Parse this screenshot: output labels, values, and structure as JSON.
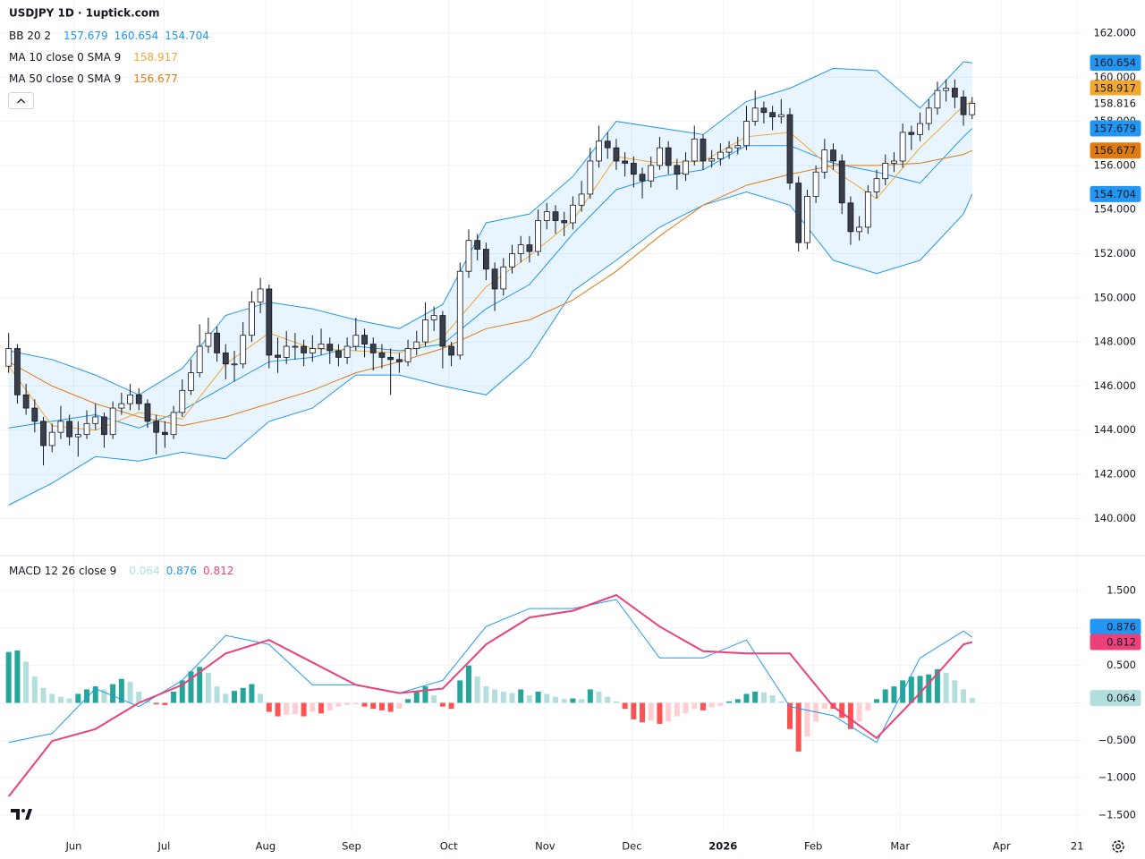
{
  "chart_data": [
    {
      "type": "candlestick",
      "title": "USDJPY 1D · 1uptick.com",
      "xlim": [
        -1,
        123.7
      ],
      "xticks": [
        {
          "value": 7.5,
          "label": "Jun"
        },
        {
          "value": 17.9,
          "label": "Jul"
        },
        {
          "value": 29.6,
          "label": "Aug"
        },
        {
          "value": 39.5,
          "label": "Sep"
        },
        {
          "value": 50.7,
          "label": "Oct"
        },
        {
          "value": 61.8,
          "label": "Nov"
        },
        {
          "value": 71.8,
          "label": "Dec"
        },
        {
          "value": 82.3,
          "label": "2026"
        },
        {
          "value": 92.7,
          "label": "Feb"
        },
        {
          "value": 102.7,
          "label": "Mar"
        },
        {
          "value": 114.4,
          "label": "Apr"
        },
        {
          "value": 123.1,
          "label": "21"
        }
      ],
      "ylim": [
        138.35,
        163.5
      ],
      "yticks": [
        {
          "value": 140,
          "label": "140.000"
        },
        {
          "value": 142,
          "label": "142.000"
        },
        {
          "value": 144,
          "label": "144.000"
        },
        {
          "value": 146,
          "label": "146.000"
        },
        {
          "value": 148,
          "label": "148.000"
        },
        {
          "value": 150,
          "label": "150.000"
        },
        {
          "value": 152,
          "label": "152.000"
        },
        {
          "value": 154,
          "label": "154.000"
        },
        {
          "value": 156,
          "label": "156.000"
        },
        {
          "value": 158,
          "label": "158.000"
        },
        {
          "value": 160,
          "label": "160.000"
        },
        {
          "value": 162,
          "label": "162.000"
        }
      ],
      "grid": true,
      "candle_colors": {
        "up": "#ffffff",
        "down": "#3a3e48",
        "border": "#131722"
      },
      "last_price_color": "#ffffff",
      "ohlc": [
        [
          146.9,
          148.4,
          146.6,
          147.7
        ],
        [
          147.7,
          147.9,
          145.2,
          145.6
        ],
        [
          145.6,
          146.1,
          144.7,
          145.0
        ],
        [
          145.0,
          145.4,
          143.9,
          144.4
        ],
        [
          144.4,
          144.6,
          142.4,
          143.3
        ],
        [
          143.3,
          144.3,
          143.0,
          143.9
        ],
        [
          143.9,
          145.1,
          143.6,
          144.4
        ],
        [
          144.4,
          144.7,
          143.3,
          143.7
        ],
        [
          143.7,
          144.4,
          142.8,
          143.8
        ],
        [
          143.8,
          144.9,
          143.6,
          144.3
        ],
        [
          144.3,
          145.2,
          144.0,
          144.6
        ],
        [
          144.6,
          144.8,
          143.2,
          143.8
        ],
        [
          143.8,
          145.3,
          143.6,
          145.0
        ],
        [
          145.0,
          145.7,
          144.7,
          145.2
        ],
        [
          145.2,
          146.1,
          144.9,
          145.6
        ],
        [
          145.6,
          145.9,
          144.9,
          145.2
        ],
        [
          145.2,
          145.4,
          144.1,
          144.4
        ],
        [
          144.4,
          144.7,
          142.9,
          143.9
        ],
        [
          143.9,
          144.4,
          143.2,
          143.8
        ],
        [
          143.8,
          145.1,
          143.6,
          144.8
        ],
        [
          144.8,
          146.3,
          144.6,
          145.8
        ],
        [
          145.8,
          147.2,
          145.6,
          146.6
        ],
        [
          146.6,
          148.8,
          146.4,
          147.8
        ],
        [
          147.8,
          149.1,
          147.5,
          148.4
        ],
        [
          148.4,
          148.7,
          147.1,
          147.5
        ],
        [
          147.5,
          147.9,
          146.3,
          147.0
        ],
        [
          147.0,
          147.6,
          146.2,
          147.0
        ],
        [
          147.0,
          148.9,
          146.8,
          148.3
        ],
        [
          148.3,
          150.3,
          148.0,
          149.8
        ],
        [
          149.8,
          150.9,
          149.3,
          150.4
        ],
        [
          150.4,
          150.6,
          146.8,
          147.4
        ],
        [
          147.4,
          148.2,
          146.6,
          147.3
        ],
        [
          147.3,
          148.5,
          147.0,
          147.8
        ],
        [
          147.8,
          148.4,
          147.2,
          147.8
        ],
        [
          147.8,
          148.1,
          146.9,
          147.5
        ],
        [
          147.5,
          148.3,
          147.1,
          147.7
        ],
        [
          147.7,
          148.6,
          147.4,
          147.9
        ],
        [
          147.9,
          148.2,
          147.0,
          147.6
        ],
        [
          147.6,
          147.9,
          146.9,
          147.3
        ],
        [
          147.3,
          148.2,
          147.0,
          147.8
        ],
        [
          147.8,
          149.1,
          147.6,
          148.3
        ],
        [
          148.3,
          148.6,
          147.3,
          147.9
        ],
        [
          147.9,
          148.2,
          146.7,
          147.5
        ],
        [
          147.5,
          147.9,
          146.8,
          147.3
        ],
        [
          147.3,
          147.7,
          145.6,
          147.2
        ],
        [
          147.2,
          147.5,
          146.6,
          147.1
        ],
        [
          147.1,
          148.1,
          146.9,
          147.7
        ],
        [
          147.7,
          148.5,
          147.4,
          148.0
        ],
        [
          148.0,
          149.8,
          147.8,
          149.0
        ],
        [
          149.0,
          149.6,
          148.5,
          149.2
        ],
        [
          149.2,
          149.4,
          146.8,
          147.8
        ],
        [
          147.8,
          148.0,
          146.9,
          147.4
        ],
        [
          147.4,
          151.6,
          147.2,
          151.2
        ],
        [
          151.2,
          153.1,
          150.9,
          152.6
        ],
        [
          152.6,
          152.9,
          151.7,
          152.2
        ],
        [
          152.2,
          152.5,
          150.8,
          151.3
        ],
        [
          151.3,
          151.6,
          149.4,
          150.4
        ],
        [
          150.4,
          151.8,
          150.1,
          151.4
        ],
        [
          151.4,
          152.4,
          151.1,
          152.0
        ],
        [
          152.0,
          152.8,
          151.6,
          152.4
        ],
        [
          152.4,
          152.8,
          151.6,
          152.1
        ],
        [
          152.1,
          154.0,
          151.9,
          153.5
        ],
        [
          153.5,
          154.3,
          153.1,
          153.9
        ],
        [
          153.9,
          154.2,
          152.9,
          153.5
        ],
        [
          153.5,
          153.9,
          152.8,
          153.4
        ],
        [
          153.4,
          154.6,
          153.1,
          154.2
        ],
        [
          154.2,
          155.3,
          153.9,
          154.7
        ],
        [
          154.7,
          156.8,
          154.5,
          156.2
        ],
        [
          156.2,
          157.8,
          155.9,
          157.1
        ],
        [
          157.1,
          157.5,
          156.3,
          156.8
        ],
        [
          156.8,
          157.2,
          155.8,
          156.2
        ],
        [
          156.2,
          156.6,
          155.5,
          156.1
        ],
        [
          156.1,
          156.4,
          155.0,
          155.6
        ],
        [
          155.6,
          155.9,
          154.5,
          155.3
        ],
        [
          155.3,
          156.4,
          155.0,
          156.0
        ],
        [
          156.0,
          157.3,
          155.8,
          156.8
        ],
        [
          156.8,
          157.1,
          155.6,
          156.0
        ],
        [
          156.0,
          156.3,
          154.9,
          155.6
        ],
        [
          155.6,
          156.6,
          155.3,
          156.2
        ],
        [
          156.2,
          157.8,
          156.0,
          157.2
        ],
        [
          157.2,
          157.4,
          155.8,
          156.2
        ],
        [
          156.2,
          156.7,
          155.9,
          156.3
        ],
        [
          156.3,
          157.0,
          156.0,
          156.6
        ],
        [
          156.6,
          157.1,
          156.3,
          156.8
        ],
        [
          156.8,
          157.3,
          156.5,
          156.9
        ],
        [
          156.9,
          158.7,
          156.7,
          158.0
        ],
        [
          158.0,
          159.4,
          157.8,
          158.6
        ],
        [
          158.6,
          158.9,
          157.9,
          158.4
        ],
        [
          158.4,
          158.7,
          157.6,
          158.2
        ],
        [
          158.2,
          159.0,
          157.9,
          158.3
        ],
        [
          158.3,
          158.6,
          154.9,
          155.2
        ],
        [
          155.2,
          155.5,
          152.1,
          152.5
        ],
        [
          152.5,
          154.9,
          152.2,
          154.6
        ],
        [
          154.6,
          156.0,
          154.3,
          155.7
        ],
        [
          155.7,
          157.2,
          155.4,
          156.7
        ],
        [
          156.7,
          157.0,
          155.8,
          156.2
        ],
        [
          156.2,
          156.5,
          153.8,
          154.3
        ],
        [
          154.3,
          154.6,
          152.4,
          153.0
        ],
        [
          153.0,
          153.7,
          152.6,
          153.2
        ],
        [
          153.2,
          155.1,
          152.9,
          154.8
        ],
        [
          154.8,
          155.8,
          154.5,
          155.4
        ],
        [
          155.4,
          156.5,
          155.1,
          156.1
        ],
        [
          156.1,
          156.6,
          155.7,
          156.2
        ],
        [
          156.2,
          157.9,
          155.9,
          157.5
        ],
        [
          157.5,
          157.8,
          156.7,
          157.4
        ],
        [
          157.4,
          158.4,
          157.1,
          157.9
        ],
        [
          157.9,
          159.0,
          157.6,
          158.6
        ],
        [
          158.6,
          159.8,
          158.3,
          159.4
        ],
        [
          159.4,
          159.9,
          158.9,
          159.5
        ],
        [
          159.5,
          159.9,
          158.6,
          159.1
        ],
        [
          159.1,
          159.4,
          157.8,
          158.3
        ],
        [
          158.3,
          159.1,
          158.1,
          158.816
        ]
      ],
      "indicator_x": [
        0,
        5,
        10,
        15,
        20,
        25,
        30,
        35,
        40,
        45,
        50,
        55,
        60,
        65,
        70,
        75,
        80,
        85,
        90,
        95,
        100,
        105,
        110,
        111
      ],
      "indicators": [
        {
          "name": "BB 20 2",
          "fill": "rgba(33,150,243,0.1)",
          "lines": [
            {
              "color": "#2196f3",
              "values": [
                144.1,
                144.4,
                144.7,
                144.1,
                144.9,
                146.0,
                147.1,
                147.3,
                147.8,
                147.6,
                147.9,
                149.5,
                150.6,
                152.9,
                154.9,
                155.5,
                155.8,
                156.9,
                156.9,
                156.1,
                155.7,
                155.2,
                157.3,
                157.679
              ]
            },
            {
              "color": "#2196f3",
              "values": [
                147.6,
                147.2,
                146.5,
                145.6,
                146.8,
                149.2,
                149.8,
                149.5,
                149.0,
                148.6,
                149.7,
                153.4,
                153.8,
                155.5,
                158.0,
                157.7,
                157.4,
                158.9,
                159.5,
                160.4,
                160.3,
                158.6,
                160.7,
                160.654
              ]
            },
            {
              "color": "#2196f3",
              "values": [
                140.6,
                141.6,
                142.8,
                142.6,
                143.0,
                142.7,
                144.4,
                145.0,
                146.5,
                146.5,
                146.0,
                145.6,
                147.3,
                150.3,
                151.7,
                153.2,
                154.2,
                154.8,
                154.2,
                151.7,
                151.1,
                151.7,
                153.8,
                154.704
              ]
            }
          ]
        },
        {
          "name": "MA 10 close 0 SMA 9",
          "lines": [
            {
              "color": "#f0a830",
              "values": [
                146.9,
                144.2,
                144.0,
                144.8,
                144.5,
                147.0,
                148.4,
                147.7,
                147.6,
                147.5,
                148.2,
                150.5,
                151.9,
                153.5,
                156.4,
                156.1,
                156.2,
                157.3,
                157.5,
                155.8,
                154.5,
                156.8,
                158.7,
                158.917
              ]
            }
          ]
        },
        {
          "name": "MA 50 close 0 SMA 9",
          "lines": [
            {
              "color": "#e07b12",
              "values": [
                147.1,
                146.0,
                145.2,
                144.6,
                144.2,
                144.6,
                145.2,
                145.8,
                146.6,
                147.1,
                147.7,
                148.6,
                149.0,
                149.9,
                151.2,
                152.8,
                154.2,
                155.1,
                155.6,
                156.0,
                156.0,
                156.1,
                156.5,
                156.677
              ]
            }
          ]
        }
      ]
    },
    {
      "type": "macd",
      "title": "MACD 12 26 close 9",
      "ylim": [
        -1.727,
        1.954
      ],
      "yticks": [
        {
          "value": -1.5,
          "label": "−1.500"
        },
        {
          "value": -1,
          "label": "−1.000"
        },
        {
          "value": -0.5,
          "label": "−0.500"
        },
        {
          "value": 0,
          "label": "0.000"
        },
        {
          "value": 0.5,
          "label": "0.500"
        },
        {
          "value": 1,
          "label": "1.000"
        },
        {
          "value": 1.5,
          "label": "1.500"
        }
      ],
      "grid": true,
      "histogram": {
        "color": "#b2dfdb",
        "colors": {
          "up_rising": "#26a69a",
          "up_falling": "#b2dfdb",
          "down_falling": "#ff5252",
          "down_rising": "#ffcdd2"
        },
        "values": [
          0.68,
          0.7,
          0.55,
          0.35,
          0.2,
          0.12,
          0.08,
          0.06,
          0.12,
          0.18,
          0.22,
          0.18,
          0.25,
          0.32,
          0.28,
          0.15,
          0.06,
          -0.02,
          -0.03,
          0.15,
          0.3,
          0.42,
          0.48,
          0.4,
          0.22,
          0.12,
          0.16,
          0.2,
          0.25,
          0.12,
          -0.12,
          -0.18,
          -0.16,
          -0.15,
          -0.18,
          -0.12,
          -0.14,
          -0.1,
          -0.05,
          -0.03,
          -0.02,
          -0.05,
          -0.08,
          -0.1,
          -0.12,
          -0.08,
          0.05,
          0.15,
          0.22,
          0.1,
          -0.05,
          -0.08,
          0.3,
          0.5,
          0.35,
          0.22,
          0.18,
          0.15,
          0.13,
          0.18,
          0.1,
          0.15,
          0.12,
          0.08,
          0.05,
          0.06,
          0.05,
          0.18,
          0.15,
          0.08,
          0.02,
          -0.08,
          -0.22,
          -0.26,
          -0.24,
          -0.28,
          -0.25,
          -0.18,
          -0.14,
          -0.08,
          -0.1,
          -0.06,
          -0.04,
          0.02,
          0.05,
          0.12,
          0.15,
          0.14,
          0.1,
          0.02,
          -0.35,
          -0.65,
          -0.45,
          -0.25,
          -0.08,
          -0.08,
          -0.2,
          -0.35,
          -0.25,
          -0.1,
          0.05,
          0.18,
          0.22,
          0.3,
          0.35,
          0.36,
          0.38,
          0.45,
          0.4,
          0.3,
          0.18,
          0.064
        ]
      },
      "lines": [
        {
          "color": "#2196f3",
          "width": 1,
          "values": [
            -0.53,
            -0.41,
            0.19,
            -0.05,
            0.3,
            0.9,
            0.78,
            0.24,
            0.24,
            0.13,
            0.3,
            1.02,
            1.26,
            1.26,
            1.38,
            0.6,
            0.6,
            0.84,
            -0.05,
            -0.17,
            -0.53,
            0.6,
            0.96,
            0.876
          ]
        },
        {
          "color": "#ec407a",
          "width": 2,
          "values": [
            -1.25,
            -0.51,
            -0.35,
            0,
            0.24,
            0.66,
            0.84,
            0.54,
            0.24,
            0.13,
            0.19,
            0.78,
            1.14,
            1.23,
            1.44,
            1.02,
            0.69,
            0.66,
            0.66,
            -0.05,
            -0.47,
            0.13,
            0.78,
            0.812
          ]
        }
      ]
    }
  ]
}
